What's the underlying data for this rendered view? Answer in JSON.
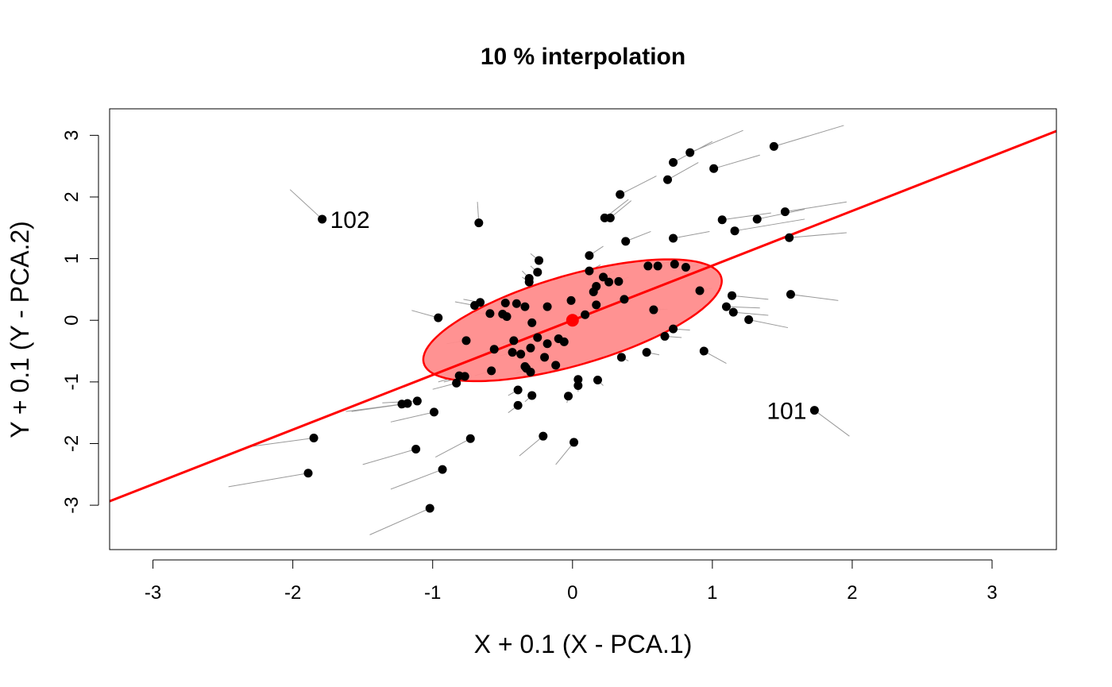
{
  "chart_data": {
    "type": "scatter",
    "title": "10 % interpolation",
    "xlabel": "X + 0.1 (X - PCA.1)",
    "ylabel": "Y + 0.1 (Y - PCA.2)",
    "xlim": [
      -3.31,
      3.46
    ],
    "ylim": [
      -3.72,
      3.43
    ],
    "xticks": [
      -3,
      -2,
      -1,
      0,
      1,
      2,
      3
    ],
    "yticks": [
      -3,
      -2,
      -1,
      0,
      1,
      2,
      3
    ],
    "grid": false,
    "colors": {
      "points": "#000000",
      "segments": "#999999",
      "line": "#ff0000",
      "ellipse_fill": "#ff8c8c",
      "ellipse_stroke": "#ff0000",
      "center": "#ff0000"
    },
    "regression_line": {
      "slope": 0.887,
      "intercept": 0
    },
    "center": {
      "x": 0,
      "y": 0
    },
    "ellipse": {
      "cx": 0,
      "cy": 0,
      "rx": 1.32,
      "ry": 0.61,
      "angle_deg": 41.6
    },
    "points": [
      {
        "x": 1.44,
        "y": 2.82,
        "x0": 1.94,
        "y0": 3.16
      },
      {
        "x": 0.84,
        "y": 2.72,
        "x0": 1.22,
        "y0": 3.08
      },
      {
        "x": 0.72,
        "y": 2.56,
        "x0": 1.0,
        "y0": 2.9
      },
      {
        "x": 1.01,
        "y": 2.46,
        "x0": 1.34,
        "y0": 2.68
      },
      {
        "x": 0.68,
        "y": 2.28,
        "x0": 0.9,
        "y0": 2.56
      },
      {
        "x": 0.34,
        "y": 2.04,
        "x0": 0.6,
        "y0": 2.34
      },
      {
        "x": -1.79,
        "y": 1.64,
        "x0": -2.02,
        "y0": 2.12,
        "label": "102"
      },
      {
        "x": -0.67,
        "y": 1.58,
        "x0": -0.68,
        "y0": 1.92
      },
      {
        "x": 0.23,
        "y": 1.66,
        "x0": 0.4,
        "y0": 1.96
      },
      {
        "x": 0.27,
        "y": 1.66,
        "x0": 0.42,
        "y0": 1.94
      },
      {
        "x": 1.07,
        "y": 1.63,
        "x0": 1.42,
        "y0": 1.74
      },
      {
        "x": 1.32,
        "y": 1.64,
        "x0": 1.66,
        "y0": 1.8
      },
      {
        "x": 1.52,
        "y": 1.76,
        "x0": 1.96,
        "y0": 1.92
      },
      {
        "x": 1.16,
        "y": 1.45,
        "x0": 1.66,
        "y0": 1.64
      },
      {
        "x": 1.55,
        "y": 1.34,
        "x0": 1.96,
        "y0": 1.42
      },
      {
        "x": 0.38,
        "y": 1.28,
        "x0": 0.56,
        "y0": 1.44
      },
      {
        "x": 0.72,
        "y": 1.33,
        "x0": 0.98,
        "y0": 1.44
      },
      {
        "x": 0.12,
        "y": 1.05,
        "x0": 0.22,
        "y0": 1.2
      },
      {
        "x": -0.24,
        "y": 0.97,
        "x0": -0.3,
        "y0": 1.08
      },
      {
        "x": -0.25,
        "y": 0.78,
        "x0": -0.3,
        "y0": 0.88
      },
      {
        "x": 0.12,
        "y": 0.8,
        "x0": 0.2,
        "y0": 0.9
      },
      {
        "x": 0.33,
        "y": 0.63,
        "x0": 0.4,
        "y0": 0.7
      },
      {
        "x": 0.22,
        "y": 0.7,
        "x0": 0.3,
        "y0": 0.8
      },
      {
        "x": 0.26,
        "y": 0.62,
        "x0": 0.34,
        "y0": 0.72
      },
      {
        "x": 0.61,
        "y": 0.88,
        "x0": 0.7,
        "y0": 0.96
      },
      {
        "x": 0.54,
        "y": 0.88,
        "x0": 0.62,
        "y0": 0.94
      },
      {
        "x": 0.73,
        "y": 0.91,
        "x0": 0.82,
        "y0": 0.96
      },
      {
        "x": 0.81,
        "y": 0.86,
        "x0": 0.9,
        "y0": 0.9
      },
      {
        "x": -0.31,
        "y": 0.68,
        "x0": -0.36,
        "y0": 0.8
      },
      {
        "x": -0.31,
        "y": 0.62,
        "x0": -0.36,
        "y0": 0.7
      },
      {
        "x": 0.17,
        "y": 0.55,
        "x0": 0.22,
        "y0": 0.62
      },
      {
        "x": 0.15,
        "y": 0.46,
        "x0": 0.2,
        "y0": 0.52
      },
      {
        "x": 0.91,
        "y": 0.48,
        "x0": 1.0,
        "y0": 0.52
      },
      {
        "x": 1.14,
        "y": 0.4,
        "x0": 1.4,
        "y0": 0.34
      },
      {
        "x": 1.56,
        "y": 0.42,
        "x0": 1.9,
        "y0": 0.32
      },
      {
        "x": -0.7,
        "y": 0.24,
        "x0": -0.84,
        "y0": 0.3
      },
      {
        "x": -0.66,
        "y": 0.29,
        "x0": -0.78,
        "y0": 0.34
      },
      {
        "x": -0.48,
        "y": 0.28,
        "x0": -0.56,
        "y0": 0.32
      },
      {
        "x": -0.4,
        "y": 0.27,
        "x0": -0.48,
        "y0": 0.3
      },
      {
        "x": -0.34,
        "y": 0.22,
        "x0": -0.42,
        "y0": 0.24
      },
      {
        "x": -0.18,
        "y": 0.22,
        "x0": -0.22,
        "y0": 0.24
      },
      {
        "x": -0.01,
        "y": 0.32,
        "x0": -0.02,
        "y0": 0.36
      },
      {
        "x": 0.17,
        "y": 0.25,
        "x0": 0.22,
        "y0": 0.28
      },
      {
        "x": 0.37,
        "y": 0.34,
        "x0": 0.44,
        "y0": 0.38
      },
      {
        "x": 0.58,
        "y": 0.17,
        "x0": 0.68,
        "y0": 0.18
      },
      {
        "x": 1.1,
        "y": 0.22,
        "x0": 1.34,
        "y0": 0.2
      },
      {
        "x": 1.15,
        "y": 0.13,
        "x0": 1.4,
        "y0": 0.08
      },
      {
        "x": 1.26,
        "y": 0.01,
        "x0": 1.54,
        "y0": -0.12
      },
      {
        "x": -0.59,
        "y": 0.11,
        "x0": -0.7,
        "y0": 0.12
      },
      {
        "x": -0.5,
        "y": 0.1,
        "x0": -0.6,
        "y0": 0.12
      },
      {
        "x": -0.47,
        "y": 0.06,
        "x0": -0.56,
        "y0": 0.08
      },
      {
        "x": -0.96,
        "y": 0.04,
        "x0": -1.15,
        "y0": 0.16
      },
      {
        "x": -0.29,
        "y": -0.04,
        "x0": -0.34,
        "y0": -0.04
      },
      {
        "x": 0.09,
        "y": 0.09,
        "x0": 0.1,
        "y0": 0.1
      },
      {
        "x": 0.72,
        "y": -0.14,
        "x0": 0.84,
        "y0": -0.16
      },
      {
        "x": 0.66,
        "y": -0.26,
        "x0": 0.78,
        "y0": -0.28
      },
      {
        "x": -0.76,
        "y": -0.33,
        "x0": -0.9,
        "y0": -0.38
      },
      {
        "x": -0.42,
        "y": -0.33,
        "x0": -0.5,
        "y0": -0.38
      },
      {
        "x": -0.25,
        "y": -0.28,
        "x0": -0.3,
        "y0": -0.32
      },
      {
        "x": -0.1,
        "y": -0.3,
        "x0": -0.12,
        "y0": -0.34
      },
      {
        "x": -0.18,
        "y": -0.38,
        "x0": -0.22,
        "y0": -0.42
      },
      {
        "x": -0.06,
        "y": -0.35,
        "x0": -0.08,
        "y0": -0.4
      },
      {
        "x": -0.56,
        "y": -0.47,
        "x0": -0.66,
        "y0": -0.54
      },
      {
        "x": -0.43,
        "y": -0.52,
        "x0": -0.52,
        "y0": -0.58
      },
      {
        "x": -0.3,
        "y": -0.45,
        "x0": -0.36,
        "y0": -0.5
      },
      {
        "x": -0.37,
        "y": -0.55,
        "x0": -0.44,
        "y0": -0.62
      },
      {
        "x": -0.2,
        "y": -0.6,
        "x0": -0.24,
        "y0": -0.66
      },
      {
        "x": -0.12,
        "y": -0.73,
        "x0": -0.14,
        "y0": -0.8
      },
      {
        "x": 0.35,
        "y": -0.6,
        "x0": 0.4,
        "y0": -0.66
      },
      {
        "x": 0.53,
        "y": -0.52,
        "x0": 0.62,
        "y0": -0.56
      },
      {
        "x": 0.94,
        "y": -0.5,
        "x0": 1.1,
        "y0": -0.7
      },
      {
        "x": -0.58,
        "y": -0.82,
        "x0": -0.7,
        "y0": -0.9
      },
      {
        "x": -0.34,
        "y": -0.75,
        "x0": -0.4,
        "y0": -0.82
      },
      {
        "x": -0.3,
        "y": -0.84,
        "x0": -0.36,
        "y0": -0.92
      },
      {
        "x": -0.33,
        "y": -0.78,
        "x0": -0.4,
        "y0": -0.86
      },
      {
        "x": -0.77,
        "y": -0.91,
        "x0": -0.92,
        "y0": -1.0
      },
      {
        "x": -0.81,
        "y": -0.9,
        "x0": -0.96,
        "y0": -1.0
      },
      {
        "x": -0.83,
        "y": -1.02,
        "x0": -1.0,
        "y0": -1.12
      },
      {
        "x": 0.04,
        "y": -0.96,
        "x0": 0.04,
        "y0": -1.06
      },
      {
        "x": 0.04,
        "y": -1.06,
        "x0": 0.04,
        "y0": -1.16
      },
      {
        "x": 0.18,
        "y": -0.97,
        "x0": 0.22,
        "y0": -1.06
      },
      {
        "x": -0.39,
        "y": -1.13,
        "x0": -0.46,
        "y0": -1.22
      },
      {
        "x": -0.29,
        "y": -1.22,
        "x0": -0.34,
        "y0": -1.32
      },
      {
        "x": -0.03,
        "y": -1.23,
        "x0": -0.04,
        "y0": -1.34
      },
      {
        "x": -0.39,
        "y": -1.38,
        "x0": -0.46,
        "y0": -1.5
      },
      {
        "x": -1.18,
        "y": -1.35,
        "x0": -1.58,
        "y0": -1.48
      },
      {
        "x": -1.22,
        "y": -1.36,
        "x0": -1.62,
        "y0": -1.48
      },
      {
        "x": -1.11,
        "y": -1.31,
        "x0": -1.36,
        "y0": -1.34
      },
      {
        "x": -0.99,
        "y": -1.49,
        "x0": -1.3,
        "y0": -1.65
      },
      {
        "x": 1.73,
        "y": -1.46,
        "x0": 1.98,
        "y0": -1.88,
        "label": "101"
      },
      {
        "x": -0.73,
        "y": -1.92,
        "x0": -0.98,
        "y0": -2.22
      },
      {
        "x": -0.21,
        "y": -1.88,
        "x0": -0.38,
        "y0": -2.2
      },
      {
        "x": 0.01,
        "y": -1.98,
        "x0": -0.12,
        "y0": -2.34
      },
      {
        "x": -1.85,
        "y": -1.91,
        "x0": -2.34,
        "y0": -2.06
      },
      {
        "x": -1.12,
        "y": -2.09,
        "x0": -1.5,
        "y0": -2.34
      },
      {
        "x": -0.93,
        "y": -2.42,
        "x0": -1.3,
        "y0": -2.74
      },
      {
        "x": -1.89,
        "y": -2.48,
        "x0": -2.46,
        "y0": -2.7
      },
      {
        "x": -1.02,
        "y": -3.05,
        "x0": -1.45,
        "y0": -3.48
      }
    ]
  }
}
